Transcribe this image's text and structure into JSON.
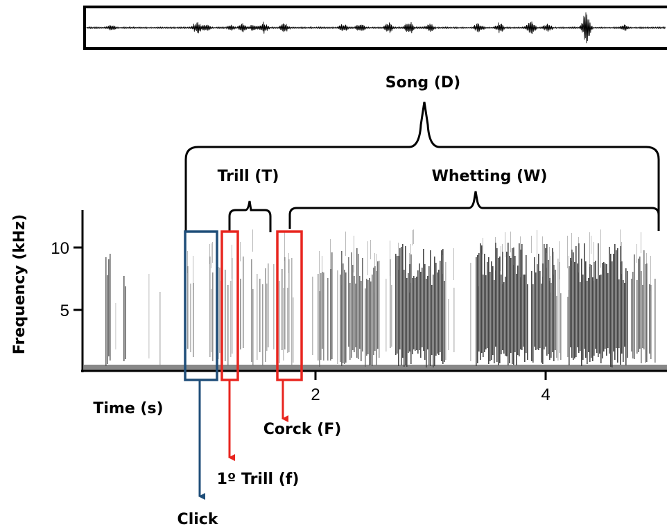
{
  "annotations": {
    "song": "Song (D)",
    "trill": "Trill (T)",
    "whetting": "Whetting (W)",
    "corck": "Corck (F)",
    "first_trill": "1º Trill (f)",
    "click": "Click"
  },
  "axes": {
    "y_label": "Frequency (kHz)",
    "x_label": "Time (s)",
    "y_ticks": [
      10,
      5
    ],
    "x_ticks": [
      2,
      4
    ]
  }
}
